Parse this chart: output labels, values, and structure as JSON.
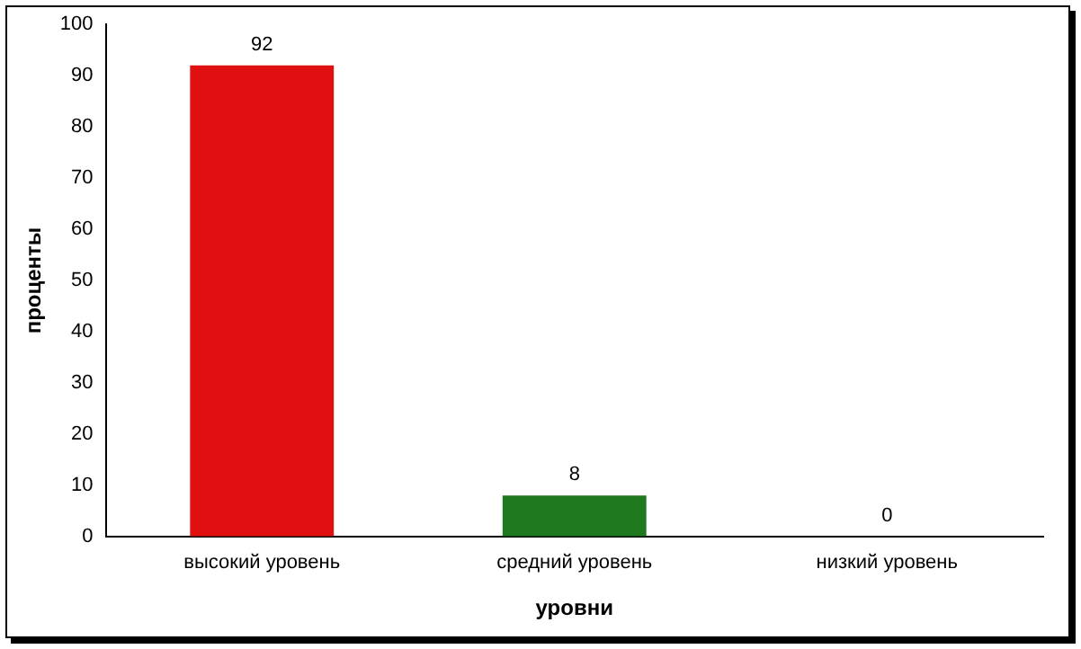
{
  "chart_data": {
    "type": "bar",
    "xlabel": "уровни",
    "ylabel": "проценты",
    "categories": [
      "высокий уровень",
      "средний уровень",
      "низкий уровень"
    ],
    "values": [
      92,
      8,
      0
    ],
    "colors": [
      "#e01010",
      "#1f7a1f",
      "#808080"
    ],
    "ylim": [
      0,
      100
    ],
    "yticks": [
      0,
      10,
      20,
      30,
      40,
      50,
      60,
      70,
      80,
      90,
      100
    ],
    "grid": false,
    "legend": false,
    "data_labels": true
  }
}
